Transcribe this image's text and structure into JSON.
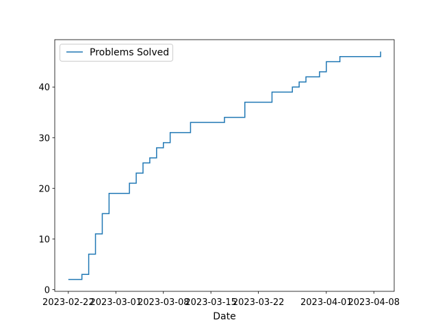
{
  "chart_data": {
    "type": "line",
    "drawstyle": "steps-post",
    "title": "",
    "xlabel": "Date",
    "ylabel": "",
    "xlim": [
      "2023-02-20",
      "2023-04-11"
    ],
    "ylim": [
      -0.35,
      49.35
    ],
    "x_ticks": [
      {
        "date": "2023-02-22",
        "label": "2023-02-22"
      },
      {
        "date": "2023-03-01",
        "label": "2023-03-01"
      },
      {
        "date": "2023-03-08",
        "label": "2023-03-08"
      },
      {
        "date": "2023-03-15",
        "label": "2023-03-15"
      },
      {
        "date": "2023-03-22",
        "label": "2023-03-22"
      },
      {
        "date": "2023-04-01",
        "label": "2023-04-01"
      },
      {
        "date": "2023-04-08",
        "label": "2023-04-08"
      }
    ],
    "y_ticks": [
      0,
      10,
      20,
      30,
      40
    ],
    "legend": {
      "position": "upper-left",
      "entries": [
        "Problems Solved"
      ]
    },
    "grid": false,
    "series": [
      {
        "name": "Problems Solved",
        "color": "#1f77b4",
        "points": [
          {
            "x": "2023-02-22",
            "y": 2
          },
          {
            "x": "2023-02-24",
            "y": 3
          },
          {
            "x": "2023-02-25",
            "y": 7
          },
          {
            "x": "2023-02-26",
            "y": 11
          },
          {
            "x": "2023-02-27",
            "y": 15
          },
          {
            "x": "2023-02-28",
            "y": 19
          },
          {
            "x": "2023-03-03",
            "y": 21
          },
          {
            "x": "2023-03-04",
            "y": 23
          },
          {
            "x": "2023-03-05",
            "y": 25
          },
          {
            "x": "2023-03-06",
            "y": 26
          },
          {
            "x": "2023-03-07",
            "y": 28
          },
          {
            "x": "2023-03-08",
            "y": 29
          },
          {
            "x": "2023-03-09",
            "y": 31
          },
          {
            "x": "2023-03-12",
            "y": 33
          },
          {
            "x": "2023-03-17",
            "y": 34
          },
          {
            "x": "2023-03-20",
            "y": 37
          },
          {
            "x": "2023-03-24",
            "y": 39
          },
          {
            "x": "2023-03-27",
            "y": 40
          },
          {
            "x": "2023-03-28",
            "y": 41
          },
          {
            "x": "2023-03-29",
            "y": 42
          },
          {
            "x": "2023-03-31",
            "y": 43
          },
          {
            "x": "2023-04-01",
            "y": 45
          },
          {
            "x": "2023-04-03",
            "y": 46
          },
          {
            "x": "2023-04-09",
            "y": 47
          }
        ]
      }
    ]
  }
}
